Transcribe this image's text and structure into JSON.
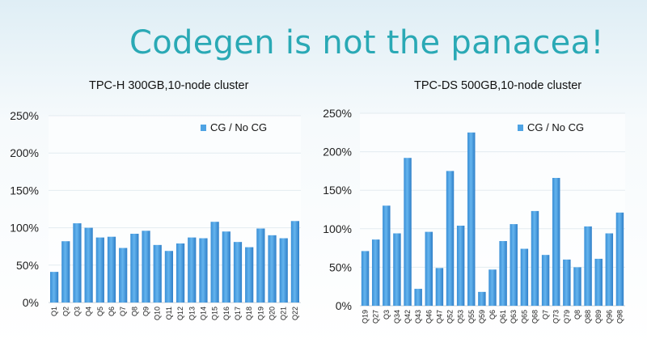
{
  "slide": {
    "title": "Codegen is not the panacea!"
  },
  "colors": {
    "bar": "#4ea3e4",
    "bar_dark": "#2f7fc8",
    "title": "#2aa9b5",
    "grid": "#e3ebf0"
  },
  "chart_data": [
    {
      "type": "bar",
      "title": "TPC-H 300GB,10-node cluster",
      "legend": "CG / No CG",
      "legend_position": "top-right",
      "ylim": [
        0,
        250
      ],
      "yticks": [
        "0%",
        "50%",
        "100%",
        "150%",
        "200%",
        "250%"
      ],
      "categories": [
        "Q1",
        "Q2",
        "Q3",
        "Q4",
        "Q5",
        "Q6",
        "Q7",
        "Q8",
        "Q9",
        "Q10",
        "Q11",
        "Q12",
        "Q13",
        "Q14",
        "Q15",
        "Q16",
        "Q17",
        "Q18",
        "Q19",
        "Q20",
        "Q21",
        "Q22"
      ],
      "values": [
        41,
        82,
        106,
        100,
        87,
        88,
        73,
        92,
        96,
        77,
        69,
        79,
        87,
        86,
        108,
        95,
        81,
        74,
        99,
        90,
        86,
        109
      ]
    },
    {
      "type": "bar",
      "title": "TPC-DS 500GB,10-node cluster",
      "legend": "CG / No CG",
      "legend_position": "top-right",
      "ylim": [
        0,
        250
      ],
      "yticks": [
        "0%",
        "50%",
        "100%",
        "150%",
        "200%",
        "250%"
      ],
      "categories": [
        "Q19",
        "Q27",
        "Q3",
        "Q34",
        "Q42",
        "Q43",
        "Q46",
        "Q47",
        "Q52",
        "Q53",
        "Q55",
        "Q59",
        "Q6",
        "Q61",
        "Q63",
        "Q65",
        "Q68",
        "Q7",
        "Q73",
        "Q79",
        "Q8",
        "Q88",
        "Q89",
        "Q96",
        "Q98"
      ],
      "values": [
        71,
        86,
        130,
        94,
        192,
        22,
        96,
        49,
        175,
        104,
        225,
        18,
        47,
        84,
        106,
        74,
        123,
        66,
        166,
        60,
        50,
        103,
        61,
        94,
        121
      ]
    }
  ]
}
